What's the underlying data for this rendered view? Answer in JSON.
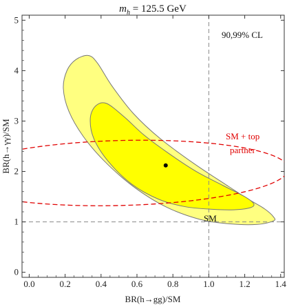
{
  "chart_data": {
    "type": "contour",
    "title_var": "m",
    "title_sub": "h",
    "title_rest": " = 125.5 GeV",
    "xlabel": "BR(h→gg)/SM",
    "ylabel": "BR(h→γγ)/SM",
    "xlim": [
      -0.04,
      1.42
    ],
    "ylim": [
      -0.1,
      5.1
    ],
    "x_ticks": [
      0.0,
      0.2,
      0.4,
      0.6,
      0.8,
      1.0,
      1.2,
      1.4
    ],
    "x_tick_labels": [
      "0.0",
      "0.2",
      "0.4",
      "0.6",
      "0.8",
      "1.0",
      "1.2",
      "1.4"
    ],
    "y_ticks": [
      0,
      1,
      2,
      3,
      4,
      5
    ],
    "y_tick_labels": [
      "0",
      "1",
      "2",
      "3",
      "4",
      "5"
    ],
    "cl_label": "90,99% CL",
    "sm_label": "SM",
    "sm_point": {
      "x": 1.0,
      "y": 1.0
    },
    "best_fit": {
      "x": 0.76,
      "y": 2.12
    },
    "top_partner_label_line1": "SM + top",
    "top_partner_label_line2": "partner",
    "regions": [
      {
        "name": "99% CL",
        "color": "#ffff80",
        "points": [
          [
            0.33,
            4.3
          ],
          [
            0.26,
            4.22
          ],
          [
            0.21,
            4.0
          ],
          [
            0.19,
            3.65
          ],
          [
            0.22,
            3.2
          ],
          [
            0.3,
            2.7
          ],
          [
            0.42,
            2.2
          ],
          [
            0.58,
            1.7
          ],
          [
            0.76,
            1.3
          ],
          [
            0.95,
            1.05
          ],
          [
            1.12,
            0.96
          ],
          [
            1.27,
            0.95
          ],
          [
            1.36,
            1.02
          ],
          [
            1.36,
            1.1
          ],
          [
            1.31,
            1.26
          ],
          [
            1.22,
            1.45
          ],
          [
            1.09,
            1.75
          ],
          [
            0.92,
            2.15
          ],
          [
            0.73,
            2.65
          ],
          [
            0.58,
            3.15
          ],
          [
            0.46,
            3.7
          ],
          [
            0.38,
            4.15
          ]
        ]
      },
      {
        "name": "90% CL",
        "color": "#ffff00",
        "points": [
          [
            0.43,
            3.35
          ],
          [
            0.37,
            3.3
          ],
          [
            0.34,
            3.05
          ],
          [
            0.36,
            2.65
          ],
          [
            0.44,
            2.2
          ],
          [
            0.57,
            1.75
          ],
          [
            0.72,
            1.45
          ],
          [
            0.87,
            1.3
          ],
          [
            1.02,
            1.25
          ],
          [
            1.14,
            1.24
          ],
          [
            1.23,
            1.28
          ],
          [
            1.25,
            1.36
          ],
          [
            1.2,
            1.5
          ],
          [
            1.08,
            1.72
          ],
          [
            0.93,
            2.0
          ],
          [
            0.78,
            2.35
          ],
          [
            0.64,
            2.72
          ],
          [
            0.53,
            3.08
          ]
        ]
      }
    ],
    "sm_top_partner_curve": {
      "color": "#e00000",
      "center": [
        0.51,
        1.97
      ],
      "semi_axis_x": 0.94,
      "semi_axis_y": 0.64,
      "rotation_deg": 9.5
    },
    "reference_lines": {
      "x": 1.0,
      "y": 1.0,
      "color": "#888888"
    }
  }
}
